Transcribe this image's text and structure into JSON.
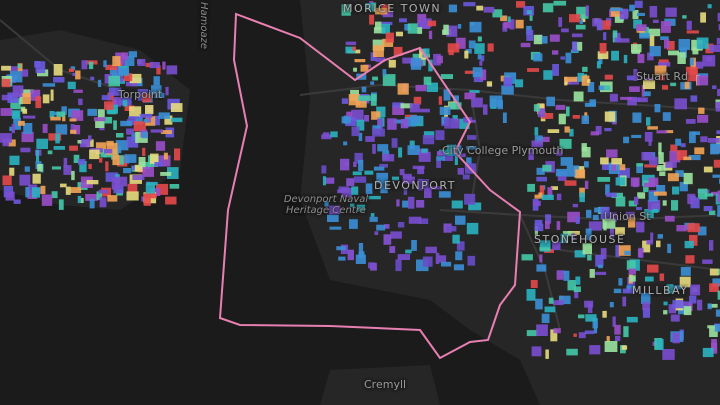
{
  "map": {
    "labels": {
      "hamoaze": "Hamoaze",
      "morice_town": "MORICE TOWN",
      "torpoint": "Torpoint",
      "city_college": "City College Plymouth",
      "devonport": "DEVONPORT",
      "heritage": "Devonport Naval Heritage Centre",
      "union_st": "Union St",
      "stonehouse": "STONEHOUSE",
      "millbay": "MILLBAY",
      "cremyll": "Cremyll",
      "stuart_rd": "Stuart Rd"
    }
  }
}
